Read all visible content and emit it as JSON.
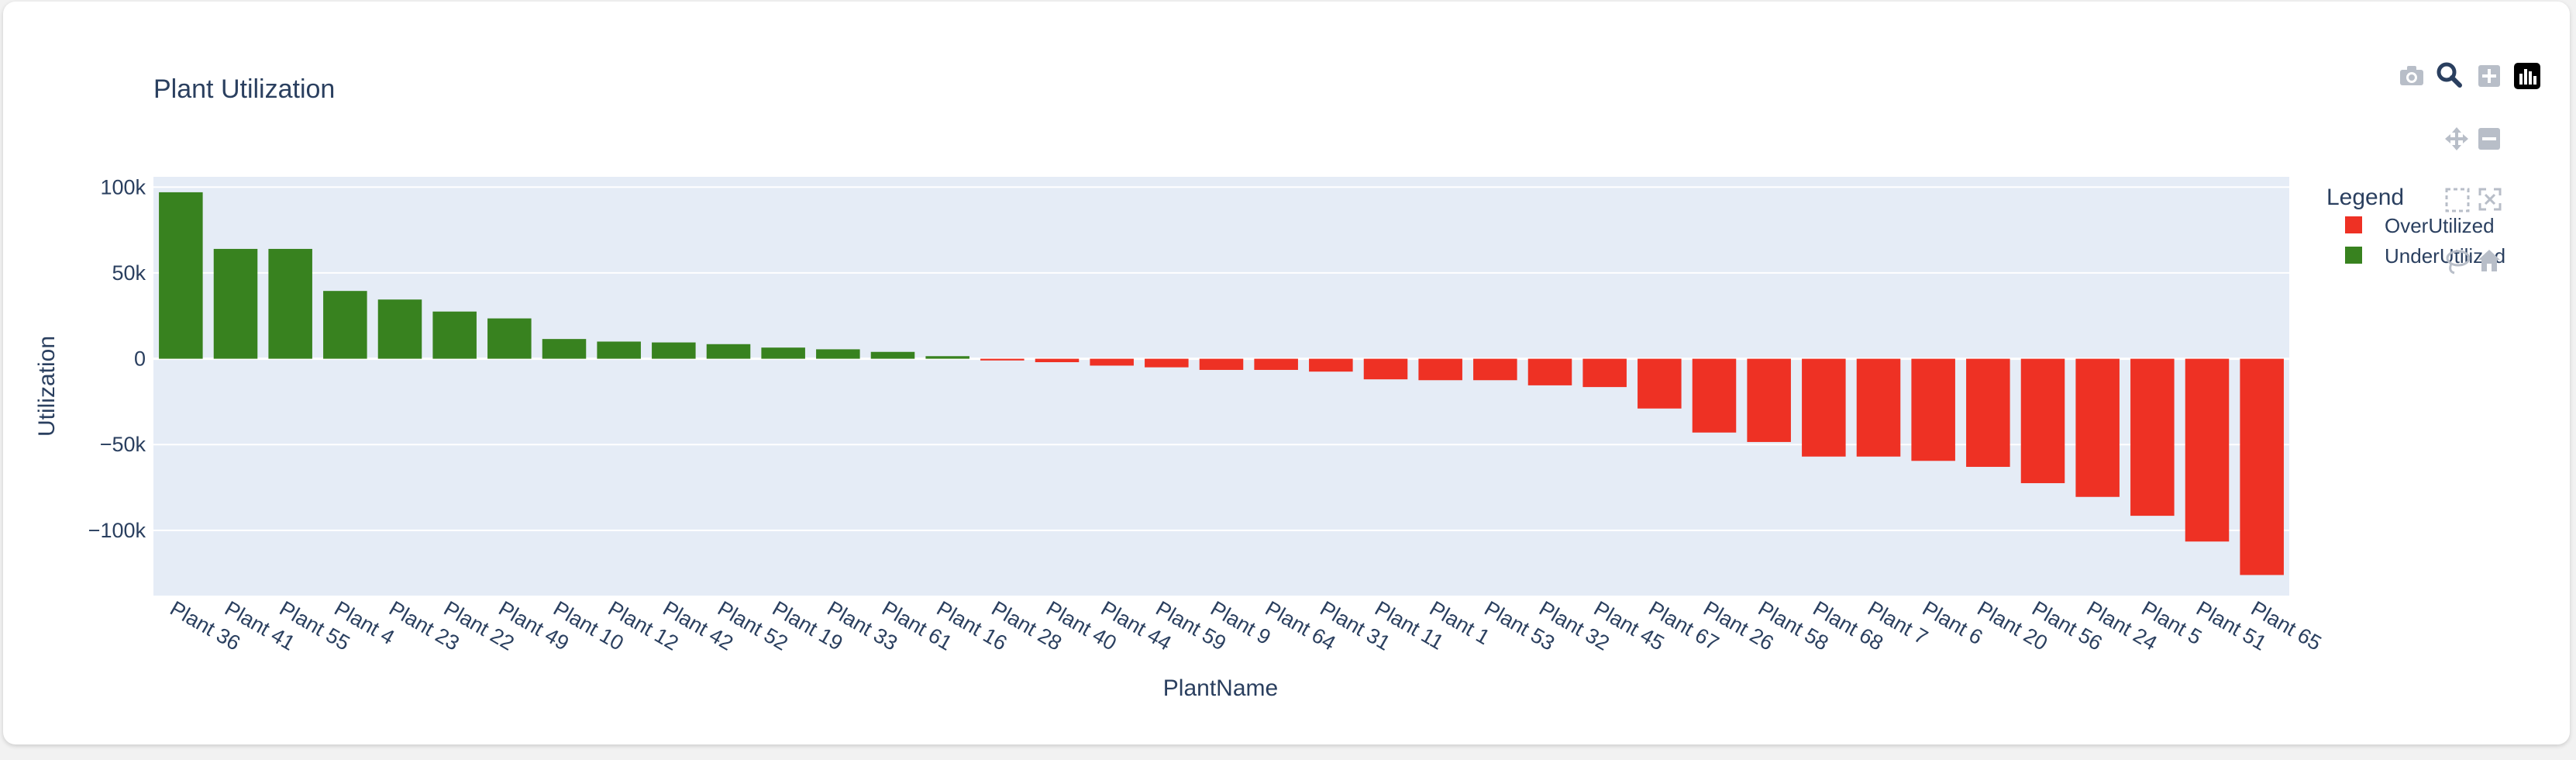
{
  "page": {
    "title": "Plant Utilization"
  },
  "modebar": {
    "icons": [
      "camera-icon",
      "zoom-icon",
      "zoom-in-icon",
      "plotly-logo-icon",
      "pan-icon",
      "zoom-out-icon",
      "box-select-icon",
      "autoscale-icon",
      "lasso-icon",
      "home-icon"
    ]
  },
  "colors": {
    "plot_bg": "#e5ecf6",
    "grid": "#ffffff",
    "text": "#2a3f5f",
    "over": "#ee3124",
    "under": "#38821f"
  },
  "chart_data": {
    "type": "bar",
    "title": "Plant Utilization",
    "xlabel": "PlantName",
    "ylabel": "Utilization",
    "ylim": [
      -138000,
      106000
    ],
    "yticks": [
      100000,
      50000,
      0,
      -50000,
      -100000
    ],
    "ytick_labels": [
      "100k",
      "50k",
      "0",
      "−50k",
      "−100k"
    ],
    "grid": true,
    "legend": {
      "title": "Legend",
      "placement": "top-right",
      "entries": [
        {
          "name": "OverUtilized",
          "color": "#ee3124"
        },
        {
          "name": "UnderUtilized",
          "color": "#38821f"
        }
      ]
    },
    "categories": [
      "Plant 36",
      "Plant 41",
      "Plant 55",
      "Plant 4",
      "Plant 23",
      "Plant 22",
      "Plant 49",
      "Plant 10",
      "Plant 12",
      "Plant 42",
      "Plant 52",
      "Plant 19",
      "Plant 33",
      "Plant 61",
      "Plant 16",
      "Plant 28",
      "Plant 40",
      "Plant 44",
      "Plant 59",
      "Plant 9",
      "Plant 64",
      "Plant 31",
      "Plant 11",
      "Plant 1",
      "Plant 53",
      "Plant 32",
      "Plant 45",
      "Plant 67",
      "Plant 26",
      "Plant 58",
      "Plant 68",
      "Plant 7",
      "Plant 6",
      "Plant 20",
      "Plant 56",
      "Plant 24",
      "Plant 5",
      "Plant 51",
      "Plant 65"
    ],
    "values": [
      97000,
      64000,
      64000,
      39500,
      34500,
      27500,
      23500,
      11500,
      10000,
      9500,
      8500,
      6500,
      5500,
      4000,
      1500,
      -1000,
      -2000,
      -4000,
      -5000,
      -6500,
      -6500,
      -7500,
      -12000,
      -12500,
      -12500,
      -15500,
      -16500,
      -29000,
      -43000,
      -48500,
      -57000,
      -57000,
      -59500,
      -63000,
      -72500,
      -80500,
      -91500,
      -106500,
      -126000
    ],
    "series_of": [
      "UnderUtilized",
      "UnderUtilized",
      "UnderUtilized",
      "UnderUtilized",
      "UnderUtilized",
      "UnderUtilized",
      "UnderUtilized",
      "UnderUtilized",
      "UnderUtilized",
      "UnderUtilized",
      "UnderUtilized",
      "UnderUtilized",
      "UnderUtilized",
      "UnderUtilized",
      "UnderUtilized",
      "OverUtilized",
      "OverUtilized",
      "OverUtilized",
      "OverUtilized",
      "OverUtilized",
      "OverUtilized",
      "OverUtilized",
      "OverUtilized",
      "OverUtilized",
      "OverUtilized",
      "OverUtilized",
      "OverUtilized",
      "OverUtilized",
      "OverUtilized",
      "OverUtilized",
      "OverUtilized",
      "OverUtilized",
      "OverUtilized",
      "OverUtilized",
      "OverUtilized",
      "OverUtilized",
      "OverUtilized",
      "OverUtilized",
      "OverUtilized"
    ]
  }
}
